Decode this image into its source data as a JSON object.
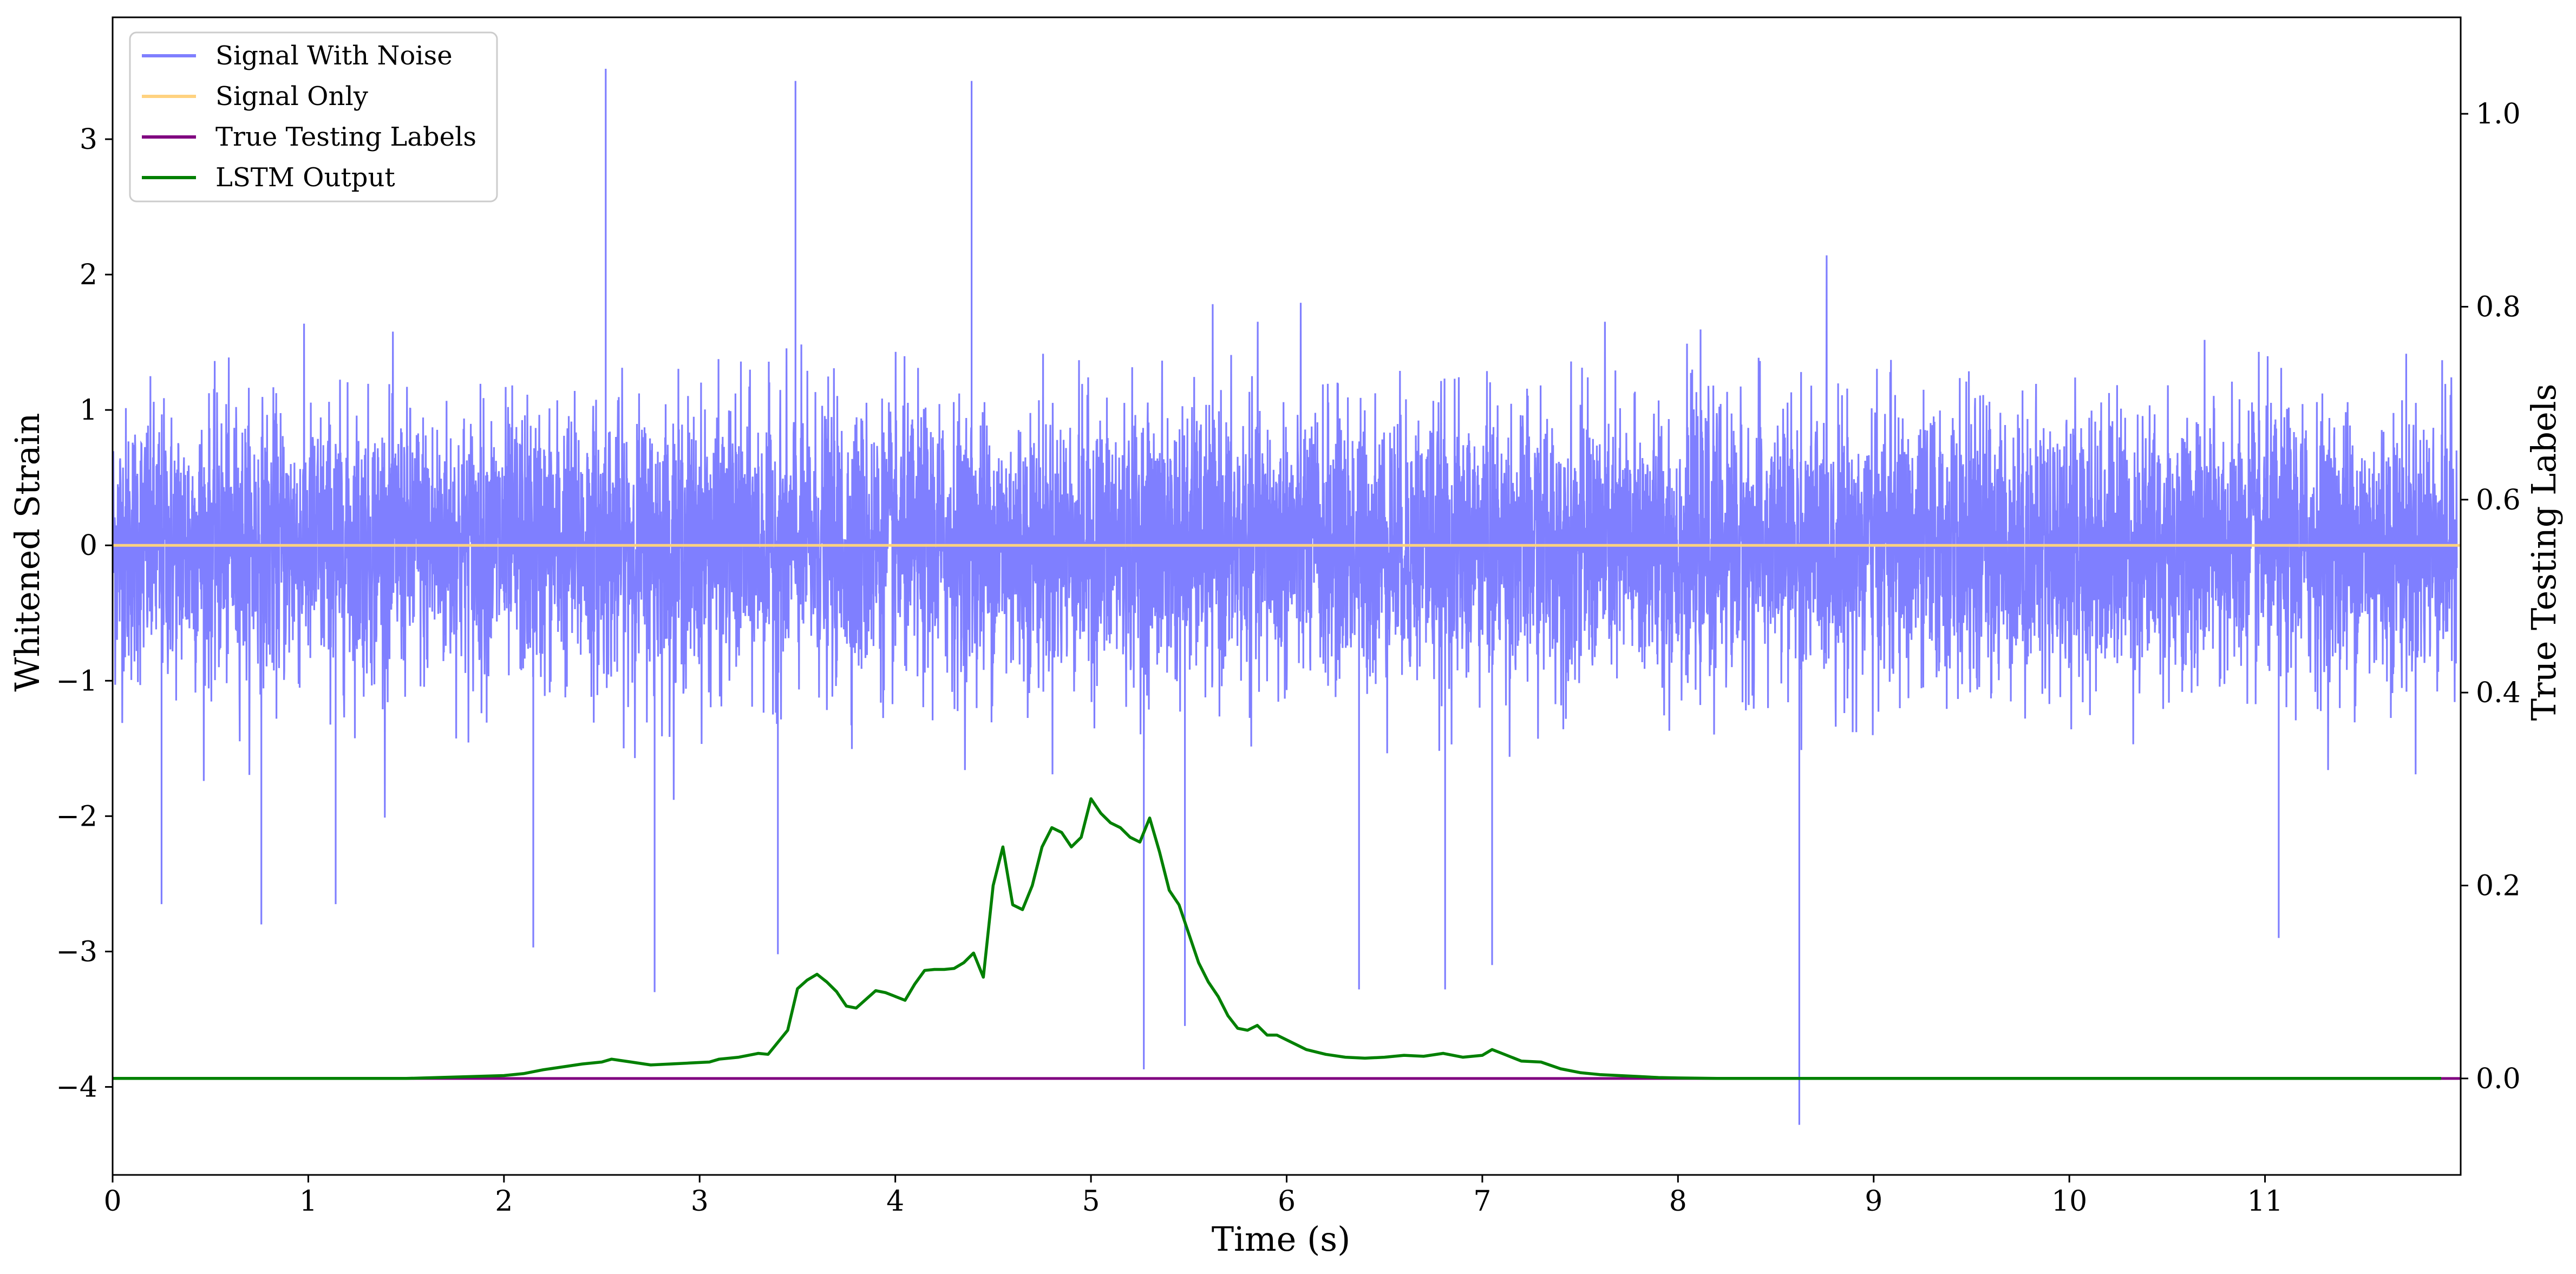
{
  "chart_data": {
    "type": "line",
    "title": "",
    "xlabel": "Time (s)",
    "ylabel_left": "Whitened Strain",
    "ylabel_right": "True Testing Labels",
    "xlim": [
      0,
      12
    ],
    "ylim_left": [
      -4.65,
      3.9
    ],
    "ylim_right": [
      -0.1,
      1.1
    ],
    "x_ticks": [
      "0",
      "1",
      "2",
      "3",
      "4",
      "5",
      "6",
      "7",
      "8",
      "9",
      "10",
      "11"
    ],
    "y_left_ticks": [
      "−4",
      "−3",
      "−2",
      "−1",
      "0",
      "1",
      "2",
      "3"
    ],
    "y_right_ticks": [
      "0.0",
      "0.2",
      "0.4",
      "0.6",
      "0.8",
      "1.0"
    ],
    "grid": false,
    "legend_position": "upper-left",
    "legend": [
      "Signal With Noise",
      "Signal Only",
      "True Testing Labels",
      "LSTM Output"
    ],
    "series": [
      {
        "name": "Signal With Noise",
        "axis": "left",
        "color": "#7f7fff",
        "description_values": "dense noise, mostly within ±1.3, spikes up to about 3.5 and down to about −4.3",
        "spikes": [
          {
            "x": 0.25,
            "y": -2.65
          },
          {
            "x": 0.76,
            "y": -2.8
          },
          {
            "x": 1.14,
            "y": -2.65
          },
          {
            "x": 2.15,
            "y": -2.97
          },
          {
            "x": 2.52,
            "y": 3.52
          },
          {
            "x": 2.77,
            "y": -3.3
          },
          {
            "x": 3.4,
            "y": -3.02
          },
          {
            "x": 3.49,
            "y": 3.43
          },
          {
            "x": 4.39,
            "y": 3.43
          },
          {
            "x": 5.27,
            "y": -3.87
          },
          {
            "x": 5.48,
            "y": -3.55
          },
          {
            "x": 6.37,
            "y": -3.28
          },
          {
            "x": 6.81,
            "y": -3.28
          },
          {
            "x": 7.05,
            "y": -3.1
          },
          {
            "x": 8.62,
            "y": -4.28
          },
          {
            "x": 11.07,
            "y": -2.9
          }
        ]
      },
      {
        "name": "Signal Only",
        "axis": "left",
        "color": "#ffd27f",
        "x": [
          0,
          12
        ],
        "y": [
          0,
          0
        ]
      },
      {
        "name": "True Testing Labels",
        "axis": "right",
        "color": "#800080",
        "x": [
          0,
          12
        ],
        "y": [
          0,
          0
        ]
      },
      {
        "name": "LSTM Output",
        "axis": "right",
        "color": "#008000",
        "x": [
          0,
          0.5,
          1.0,
          1.5,
          2.0,
          2.1,
          2.2,
          2.3,
          2.4,
          2.5,
          2.55,
          2.65,
          2.75,
          2.85,
          2.95,
          3.05,
          3.1,
          3.2,
          3.3,
          3.35,
          3.45,
          3.5,
          3.55,
          3.6,
          3.65,
          3.7,
          3.75,
          3.8,
          3.85,
          3.9,
          3.95,
          4.0,
          4.05,
          4.1,
          4.15,
          4.2,
          4.25,
          4.3,
          4.35,
          4.4,
          4.45,
          4.5,
          4.55,
          4.6,
          4.65,
          4.7,
          4.75,
          4.8,
          4.85,
          4.9,
          4.95,
          5.0,
          5.05,
          5.1,
          5.15,
          5.2,
          5.25,
          5.3,
          5.35,
          5.4,
          5.45,
          5.5,
          5.55,
          5.6,
          5.65,
          5.7,
          5.75,
          5.8,
          5.85,
          5.9,
          5.95,
          6.0,
          6.1,
          6.2,
          6.3,
          6.4,
          6.5,
          6.6,
          6.7,
          6.8,
          6.9,
          7.0,
          7.05,
          7.1,
          7.2,
          7.3,
          7.4,
          7.5,
          7.6,
          7.7,
          7.8,
          7.9,
          8.0,
          8.2,
          8.5,
          9,
          10,
          11,
          11.9
        ],
        "y": [
          0.0,
          0.0,
          0.0,
          0.0,
          0.003,
          0.005,
          0.009,
          0.012,
          0.015,
          0.017,
          0.02,
          0.017,
          0.014,
          0.015,
          0.016,
          0.017,
          0.02,
          0.022,
          0.026,
          0.025,
          0.05,
          0.093,
          0.102,
          0.108,
          0.1,
          0.09,
          0.075,
          0.073,
          0.082,
          0.091,
          0.089,
          0.085,
          0.081,
          0.098,
          0.112,
          0.113,
          0.113,
          0.114,
          0.12,
          0.13,
          0.105,
          0.2,
          0.24,
          0.18,
          0.175,
          0.2,
          0.24,
          0.26,
          0.255,
          0.24,
          0.25,
          0.29,
          0.275,
          0.265,
          0.26,
          0.25,
          0.245,
          0.27,
          0.235,
          0.195,
          0.18,
          0.15,
          0.12,
          0.1,
          0.085,
          0.065,
          0.052,
          0.05,
          0.055,
          0.045,
          0.045,
          0.04,
          0.03,
          0.025,
          0.022,
          0.021,
          0.022,
          0.024,
          0.023,
          0.026,
          0.022,
          0.024,
          0.03,
          0.026,
          0.018,
          0.017,
          0.01,
          0.006,
          0.004,
          0.003,
          0.002,
          0.001,
          0.0005,
          0.0,
          0.0,
          0.0,
          0.0,
          0.0,
          0.0
        ]
      }
    ]
  }
}
